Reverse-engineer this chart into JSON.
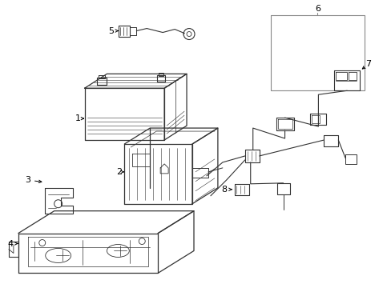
{
  "background_color": "#ffffff",
  "line_color": "#333333",
  "gray_color": "#888888",
  "text_color": "#000000",
  "fig_width": 4.89,
  "fig_height": 3.6,
  "dpi": 100
}
